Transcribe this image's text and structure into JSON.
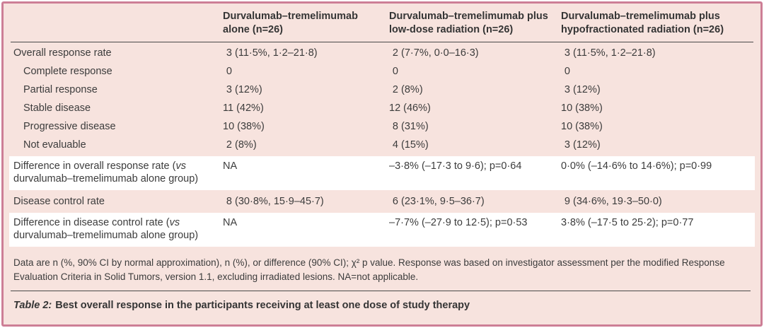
{
  "colors": {
    "card_background": "#f7e3de",
    "card_border": "#cd7e96",
    "highlight_row": "#ffffff",
    "text": "#3c3c3c",
    "rule": "#4a4a4a"
  },
  "table": {
    "columns": [
      {
        "label": ""
      },
      {
        "label": "Durvalumab–tremelimumab\nalone (n=26)"
      },
      {
        "label": "Durvalumab–tremelimumab plus\nlow-dose radiation (n=26)"
      },
      {
        "label": "Durvalumab–tremelimumab plus\nhypofractionated radiation (n=26)"
      }
    ],
    "rows": [
      {
        "label": "Overall response rate",
        "indent": false,
        "highlight": false,
        "values": [
          "3 (11·5%, 1·2–21·8)",
          "2 (7·7%, 0·0–16·3)",
          "3 (11·5%, 1·2–21·8)"
        ]
      },
      {
        "label": "Complete response",
        "indent": true,
        "highlight": false,
        "values": [
          "0",
          "0",
          "0"
        ]
      },
      {
        "label": "Partial response",
        "indent": true,
        "highlight": false,
        "values": [
          "3 (12%)",
          "2 (8%)",
          "3 (12%)"
        ]
      },
      {
        "label": "Stable disease",
        "indent": true,
        "highlight": false,
        "values": [
          "11 (42%)",
          "12 (46%)",
          "10 (38%)"
        ]
      },
      {
        "label": "Progressive disease",
        "indent": true,
        "highlight": false,
        "values": [
          "10 (38%)",
          "8 (31%)",
          "10 (38%)"
        ]
      },
      {
        "label": "Not evaluable",
        "indent": true,
        "highlight": false,
        "values": [
          "2 (8%)",
          "4 (15%)",
          "3 (12%)"
        ]
      },
      {
        "label_parts": {
          "pre": "Difference in overall response rate (",
          "italic": "vs",
          "post": "\ndurvalumab–tremelimumab alone group)"
        },
        "indent": false,
        "highlight": true,
        "values": [
          "NA",
          "–3·8% (–17·3 to 9·6); p=0·64",
          "0·0% (–14·6% to 14·6%); p=0·99"
        ]
      },
      {
        "label": "Disease control rate",
        "indent": false,
        "highlight": false,
        "values": [
          "8 (30·8%, 15·9–45·7)",
          "6 (23·1%, 9·5–36·7)",
          "9 (34·6%, 19·3–50·0)"
        ]
      },
      {
        "label_parts": {
          "pre": "Difference in disease control rate (",
          "italic": "vs",
          "post": "\ndurvalumab–tremelimumab alone group)"
        },
        "indent": false,
        "highlight": true,
        "values": [
          "NA",
          "–7·7% (–27·9 to 12·5); p=0·53",
          "3·8% (–17·5 to 25·2); p=0·77"
        ]
      }
    ]
  },
  "footnote": "Data are n (%, 90% CI by normal approximation), n (%), or difference (90% CI); χ² p value. Response was based on investigator assessment per the modified Response\nEvaluation Criteria in Solid Tumors, version 1.1, excluding irradiated lesions. NA=not applicable.",
  "caption": {
    "prefix": "Table 2:",
    "text": "Best overall response in the participants receiving at least one dose of study therapy"
  }
}
